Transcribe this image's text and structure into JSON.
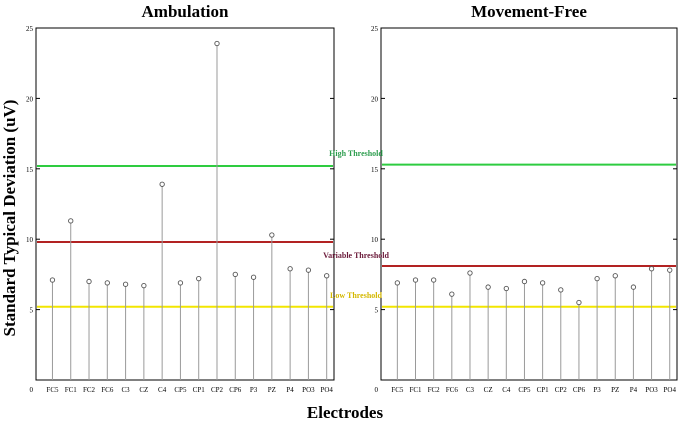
{
  "figure": {
    "ylabel": "Standard Typical Deviation (uV)",
    "xlabel": "Electrodes"
  },
  "chart_data": [
    {
      "type": "stem",
      "title": "Ambulation",
      "xlabel": "Electrodes",
      "ylabel": "Standard Typical Deviation (uV)",
      "ylim": [
        0,
        25
      ],
      "yticks": [
        0,
        5,
        10,
        15,
        20,
        25
      ],
      "grid": false,
      "categories": [
        "FC5",
        "FC1",
        "FC2",
        "FC6",
        "C3",
        "CZ",
        "C4",
        "CP5",
        "CP1",
        "CP2",
        "CP6",
        "P3",
        "PZ",
        "P4",
        "PO3",
        "PO4"
      ],
      "values": [
        7.1,
        11.3,
        7.0,
        6.9,
        6.8,
        6.7,
        13.9,
        6.9,
        7.2,
        23.9,
        7.5,
        7.3,
        10.3,
        7.9,
        7.8,
        7.4
      ],
      "thresholds": [
        {
          "name": "High Threshold",
          "value": 15.2,
          "color": "#2ecc40"
        },
        {
          "name": "Variable Threshold",
          "value": 9.8,
          "color": "#b22222"
        },
        {
          "name": "Low Threshold",
          "value": 5.2,
          "color": "#f2e600"
        }
      ]
    },
    {
      "type": "stem",
      "title": "Movement-Free",
      "xlabel": "Electrodes",
      "ylabel": "Standard Typical Deviation (uV)",
      "ylim": [
        0,
        25
      ],
      "yticks": [
        0,
        5,
        10,
        15,
        20,
        25
      ],
      "grid": false,
      "categories": [
        "FC5",
        "FC1",
        "FC2",
        "FC6",
        "C3",
        "CZ",
        "C4",
        "CP5",
        "CP1",
        "CP2",
        "CP6",
        "P3",
        "PZ",
        "P4",
        "PO3",
        "PO4"
      ],
      "values": [
        6.9,
        7.1,
        7.1,
        6.1,
        7.6,
        6.6,
        6.5,
        7.0,
        6.9,
        6.4,
        5.5,
        7.2,
        7.4,
        6.6,
        7.9,
        7.8
      ],
      "thresholds": [
        {
          "name": "High Threshold",
          "value": 15.3,
          "color": "#2ecc40"
        },
        {
          "name": "Variable Threshold",
          "value": 8.1,
          "color": "#b22222"
        },
        {
          "name": "Low Threshold",
          "value": 5.2,
          "color": "#f2e600"
        }
      ]
    }
  ],
  "annotations": [
    {
      "text": "High Threshold",
      "color": "#2e9e4f"
    },
    {
      "text": "Variable Threshold",
      "color": "#6b1a3a"
    },
    {
      "text": "Low Threshold",
      "color": "#d4b800"
    }
  ]
}
